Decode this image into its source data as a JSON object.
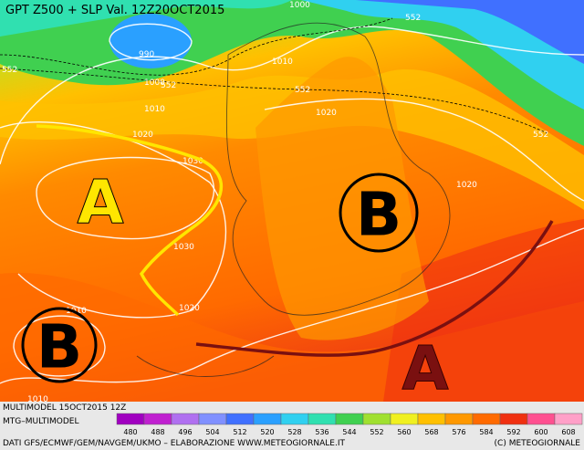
{
  "header": {
    "title": "GPT Z500 + SLP Val. 12Z20OCT2015"
  },
  "contour_labels": [
    "1000",
    "990",
    "552",
    "1010",
    "552",
    "1000",
    "552",
    "552",
    "1010",
    "1020",
    "552",
    "1020",
    "1030",
    "1020",
    "1030",
    "1020",
    "1010",
    "1010"
  ],
  "pressure_systems": [
    {
      "label": "A"
    },
    {
      "label": "B"
    },
    {
      "label": "B"
    },
    {
      "label": "A"
    }
  ],
  "footer": {
    "run": "MULTIMODEL 15OCT2015 12Z",
    "source": "MTG–MULTIMODEL",
    "credits": "DATI GFS/ECMWF/GEM/NAVGEM/UKMO – ELABORAZIONE WWW.METEOGIORNALE.IT",
    "copyright": "(C) METEOGIORNALE"
  },
  "legend": {
    "values": [
      480,
      488,
      496,
      504,
      512,
      520,
      528,
      536,
      544,
      552,
      560,
      568,
      576,
      584,
      592,
      600,
      608
    ],
    "colors": [
      "#a000c0",
      "#c020d0",
      "#b070f0",
      "#8090ff",
      "#4070ff",
      "#2aa0ff",
      "#30d0f0",
      "#30e0b0",
      "#40d050",
      "#a0e030",
      "#f0f020",
      "#ffc000",
      "#ff9800",
      "#ff6a00",
      "#f03010",
      "#ff5090",
      "#ffa0c8"
    ]
  }
}
